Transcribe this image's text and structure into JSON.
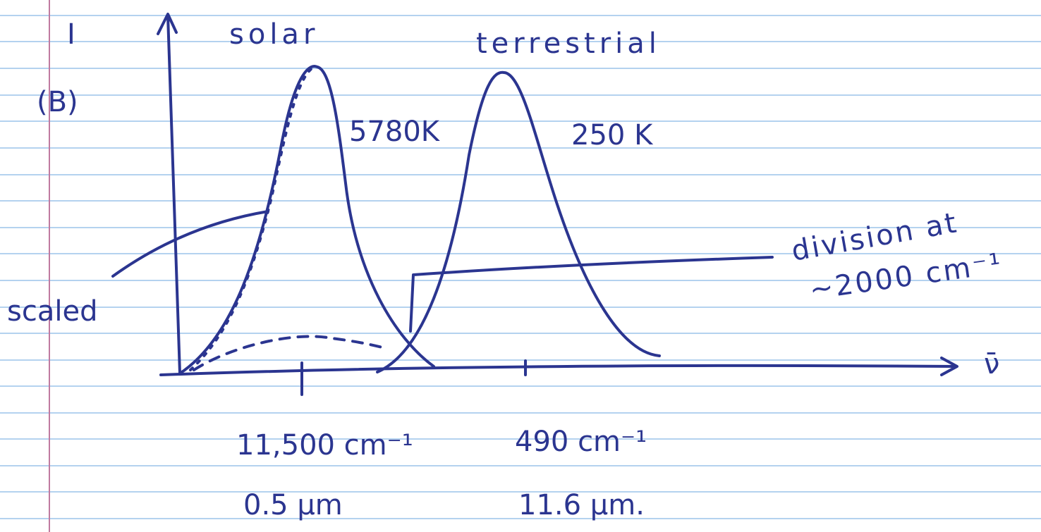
{
  "axis": {
    "y_label": "I",
    "y_label_alt": "(B)",
    "x_label": "ν̄"
  },
  "curves": [
    {
      "label": "solar",
      "temperature": "5780K",
      "peak_wavenumber": "11,500 cm⁻¹",
      "peak_wavelength": "0.5 μm"
    },
    {
      "label": "terrestrial",
      "temperature": "250 K",
      "peak_wavenumber": "490 cm⁻¹",
      "peak_wavelength": "11.6 μm."
    }
  ],
  "annotations": {
    "scaled": "scaled",
    "division_line1": "division at",
    "division_line2": "~2000 cm⁻¹"
  }
}
